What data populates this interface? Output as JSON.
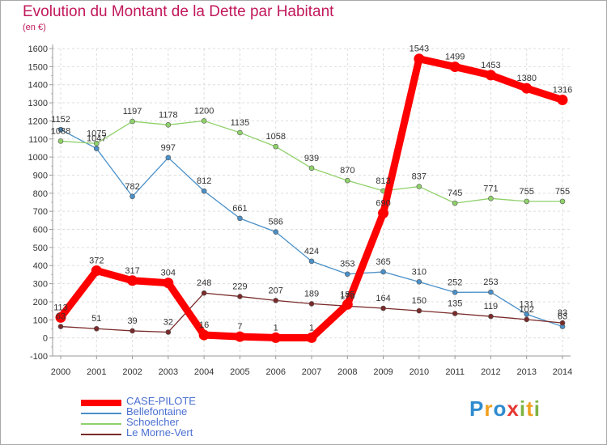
{
  "title": "Evolution du Montant de la Dette par Habitant",
  "subtitle": "(en €)",
  "logo": {
    "letters": [
      {
        "ch": "P",
        "color": "#2e8bcf"
      },
      {
        "ch": "r",
        "color": "#f0a020"
      },
      {
        "ch": "o",
        "color": "#2e8bcf"
      },
      {
        "ch": "x",
        "color": "#e53935"
      },
      {
        "ch": "i",
        "color": "#7cb342"
      },
      {
        "ch": "t",
        "color": "#f0a020"
      },
      {
        "ch": "i",
        "color": "#7cb342"
      }
    ]
  },
  "chart_data": {
    "type": "line",
    "title": "Evolution du Montant de la Dette par Habitant",
    "subtitle": "(en €)",
    "x": [
      "2000",
      "2001",
      "2002",
      "2003",
      "2004",
      "2005",
      "2006",
      "2007",
      "2008",
      "2009",
      "2010",
      "2011",
      "2012",
      "2013",
      "2014"
    ],
    "y_ticks": [
      "-100",
      "0",
      "100",
      "200",
      "300",
      "400",
      "500",
      "600",
      "700",
      "800",
      "900",
      "1000",
      "1100",
      "1200",
      "1300",
      "1400",
      "1500",
      "1600"
    ],
    "ylim": [
      -100,
      1600
    ],
    "grid": true,
    "legend_position": "bottom-left",
    "series": [
      {
        "name": "CASE-PILOTE",
        "color": "#ff0000",
        "highlight": true,
        "values": [
          113,
          372,
          317,
          304,
          16,
          7,
          1,
          1,
          185,
          690,
          1543,
          1499,
          1453,
          1380,
          1316
        ],
        "labels": [
          "113",
          "372",
          "317",
          "304",
          "16",
          "7",
          "1",
          "1",
          "185",
          "690",
          "1543",
          "1499",
          "1453",
          "1380",
          "1316"
        ]
      },
      {
        "name": "Bellefontaine",
        "color": "#4a90c8",
        "values": [
          1152,
          1047,
          782,
          997,
          812,
          661,
          586,
          424,
          353,
          365,
          310,
          252,
          253,
          131,
          63
        ],
        "labels": [
          "1152",
          "1047",
          "782",
          "997",
          "812",
          "661",
          "586",
          "424",
          "353",
          "365",
          "310",
          "252",
          "253",
          "131",
          "63"
        ]
      },
      {
        "name": "Schoelcher",
        "color": "#8fd16a",
        "values": [
          1088,
          1075,
          1197,
          1178,
          1200,
          1135,
          1058,
          939,
          870,
          813,
          837,
          745,
          771,
          755,
          755
        ],
        "labels": [
          "1088",
          "1075",
          "1197",
          "1178",
          "1200",
          "1135",
          "1058",
          "939",
          "870",
          "813",
          "837",
          "745",
          "771",
          "755",
          "755"
        ]
      },
      {
        "name": "Le Morne-Vert",
        "color": "#7a2a2a",
        "values": [
          63,
          51,
          39,
          32,
          248,
          229,
          207,
          189,
          176,
          164,
          150,
          135,
          119,
          102,
          83
        ],
        "labels": [
          "63",
          "51",
          "39",
          "32",
          "248",
          "229",
          "207",
          "189",
          "176",
          "164",
          "150",
          "135",
          "119",
          "102",
          "83"
        ]
      }
    ]
  }
}
